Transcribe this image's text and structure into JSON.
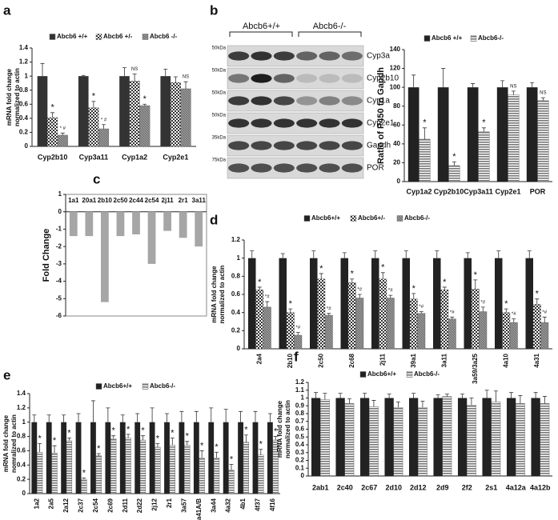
{
  "chart_data": [
    {
      "type": "bar",
      "panel": "a",
      "ylabel": [
        "mRNA fold change",
        "normalized to actin"
      ],
      "categories": [
        "Cyp2b10",
        "Cyp3a11",
        "Cyp1a2",
        "Cyp2e1"
      ],
      "ylim": [
        0,
        1.4
      ],
      "yticks": [
        0,
        0.2,
        0.4,
        0.6,
        0.8,
        1,
        1.2,
        1.4
      ],
      "series": [
        {
          "name": "Abcb6 +/+",
          "color": "#333333",
          "pattern": "solid",
          "values": [
            1,
            1,
            1,
            1
          ],
          "errors": [
            0.18,
            0.01,
            0.12,
            0.1
          ],
          "annotations": [
            null,
            null,
            null,
            null
          ]
        },
        {
          "name": "Abcb6 +/-",
          "color": "#333333",
          "pattern": "checker",
          "values": [
            0.41,
            0.55,
            0.93,
            0.91
          ],
          "errors": [
            0.07,
            0.09,
            0.1,
            0.08
          ],
          "annotations": [
            "*",
            "*",
            "NS",
            null
          ]
        },
        {
          "name": "Abcb6 -/-",
          "color": "#888888",
          "pattern": "hatch",
          "values": [
            0.16,
            0.25,
            0.58,
            0.82
          ],
          "errors": [
            0.03,
            0.06,
            0.02,
            0.1
          ],
          "annotations": [
            "* #",
            "* #",
            "*",
            "NS"
          ]
        }
      ]
    },
    {
      "type": "blot",
      "panel": "b",
      "group_labels": [
        "Abcb6+/+",
        "Abcb6-/-"
      ],
      "markers": [
        "50kDa",
        "50kDa",
        "50kDa",
        "50kDa",
        "35kDa",
        "75kDa"
      ],
      "bands": [
        "Cyp3a",
        "Cyp2b10",
        "Cyp1a",
        "Cyp2e1",
        "Gapdh",
        "POR"
      ]
    },
    {
      "type": "bar",
      "ylabel": "Ratio of P450 to Gapdh",
      "categories": [
        "Cyp1a2",
        "Cyp2b10",
        "Cyp3a11",
        "Cyp2e1",
        "POR"
      ],
      "ylim": [
        0,
        140
      ],
      "yticks": [
        0,
        20,
        40,
        60,
        80,
        100,
        120,
        140
      ],
      "series": [
        {
          "name": "Abcb6 +/+",
          "color": "#222222",
          "pattern": "solid",
          "values": [
            100,
            100,
            100,
            100,
            100
          ],
          "errors": [
            13,
            20,
            4,
            7,
            5
          ],
          "annotations": [
            null,
            null,
            null,
            null,
            null
          ]
        },
        {
          "name": "Abcb6-/-",
          "color": "#555555",
          "pattern": "hstripe",
          "values": [
            45,
            17,
            53,
            92,
            86
          ],
          "errors": [
            12,
            4,
            4,
            4,
            3
          ],
          "annotations": [
            "*",
            "*",
            "*",
            "NS",
            "NS"
          ]
        }
      ]
    },
    {
      "type": "bar",
      "panel": "c",
      "ylabel": "Fold Change",
      "categories": [
        "1a1",
        "20a1",
        "2b10",
        "2c50",
        "2c44",
        "2c54",
        "2j11",
        "2r1",
        "3a11"
      ],
      "ylim": [
        -6,
        1
      ],
      "yticks": [
        1,
        0,
        -1,
        -2,
        -3,
        -4,
        -5,
        -6
      ],
      "series": [
        {
          "name": null,
          "color": "#a6a6a6",
          "pattern": "solid",
          "values": [
            -1.4,
            -1.4,
            -5.2,
            -1.4,
            -1.3,
            -3.0,
            -1.1,
            -1.5,
            -2.0
          ]
        }
      ]
    },
    {
      "type": "bar",
      "panel": "d",
      "ylabel": [
        "mRNA fold change",
        "normalized to actin"
      ],
      "categories": [
        "2a4",
        "2b10",
        "2c50",
        "2c68",
        "2j11",
        "39a1",
        "3a11",
        "3a59/3a25",
        "4a10",
        "4a31"
      ],
      "ylim": [
        0,
        1.2
      ],
      "yticks": [
        0,
        0.2,
        0.4,
        0.6,
        0.8,
        1,
        1.2
      ],
      "series": [
        {
          "name": "Abcb6+/+",
          "color": "#222222",
          "pattern": "solid",
          "values": [
            1,
            1,
            1,
            1,
            1,
            1,
            1,
            1,
            1,
            1
          ],
          "errors": [
            0.08,
            0.05,
            0.08,
            0.06,
            0.08,
            0.08,
            0.08,
            0.06,
            0.08,
            0.08
          ],
          "annotations": [
            null,
            null,
            null,
            null,
            null,
            null,
            null,
            null,
            null,
            null
          ]
        },
        {
          "name": "Abcb6+/-",
          "color": "#333333",
          "pattern": "checker",
          "values": [
            0.65,
            0.4,
            0.77,
            0.73,
            0.77,
            0.55,
            0.65,
            0.66,
            0.4,
            0.49
          ],
          "errors": [
            0.03,
            0.04,
            0.06,
            0.04,
            0.07,
            0.06,
            0.03,
            0.1,
            0.04,
            0.06
          ],
          "annotations": [
            "*",
            "*",
            "*",
            "*",
            "*",
            "*",
            "*",
            "*",
            "*",
            "*"
          ]
        },
        {
          "name": "Abcb6-/-",
          "color": "#999999",
          "pattern": "hatch",
          "values": [
            0.46,
            0.15,
            0.37,
            0.56,
            0.56,
            0.39,
            0.33,
            0.41,
            0.29,
            0.29
          ],
          "errors": [
            0.06,
            0.03,
            0.02,
            0.04,
            0.03,
            0.02,
            0.02,
            0.05,
            0.04,
            0.06
          ],
          "annotations": [
            "*#",
            "*#",
            "*#",
            "*#",
            "*#",
            "*#",
            "*#",
            "*#",
            "*#",
            "*#"
          ]
        }
      ]
    },
    {
      "type": "bar",
      "panel": "e",
      "ylabel": [
        "mRNA fold change",
        "nomralized to actin"
      ],
      "categories": [
        "1a2",
        "2a5",
        "2a12",
        "2c37",
        "2c54",
        "2c69",
        "2d11",
        "2d22",
        "2j12",
        "2r1",
        "3a57",
        "3a41A/B",
        "3a44",
        "4a32",
        "4b1",
        "4f37",
        "4f16"
      ],
      "ylim": [
        0,
        1.4
      ],
      "yticks": [
        0,
        0.2,
        0.4,
        0.6,
        0.8,
        1,
        1.2,
        1.4
      ],
      "series": [
        {
          "name": "Abcb6+/+",
          "color": "#222222",
          "pattern": "solid",
          "values": [
            1,
            1,
            1,
            1,
            1,
            1,
            1,
            1,
            1,
            1,
            1,
            1,
            1,
            1,
            1,
            1,
            1
          ],
          "errors": [
            0.1,
            0.1,
            0.1,
            0.12,
            0.3,
            0.2,
            0.1,
            0.12,
            0.2,
            0.12,
            0.15,
            0.15,
            0.2,
            0.18,
            0.15,
            0.15,
            0.12
          ],
          "annotations": [
            null,
            null,
            null,
            null,
            null,
            null,
            null,
            null,
            null,
            null,
            null,
            null,
            null,
            null,
            null,
            null,
            null
          ]
        },
        {
          "name": "Abcb6-/-",
          "color": "#888888",
          "pattern": "hstripe",
          "values": [
            0.58,
            0.57,
            0.74,
            0.2,
            0.53,
            0.77,
            0.78,
            0.75,
            0.65,
            0.68,
            0.68,
            0.5,
            0.5,
            0.33,
            0.72,
            0.54,
            0.75
          ],
          "errors": [
            0.12,
            0.1,
            0.04,
            0.02,
            0.03,
            0.04,
            0.05,
            0.06,
            0.05,
            0.1,
            0.05,
            0.1,
            0.08,
            0.08,
            0.1,
            0.08,
            0.05
          ],
          "annotations": [
            "*",
            "*",
            "*",
            "*",
            "*",
            "*",
            "*",
            "*",
            "*",
            "*",
            "*",
            "*",
            "*",
            "*",
            "*",
            "*",
            "*"
          ]
        }
      ]
    },
    {
      "type": "bar",
      "panel": "f",
      "ylabel": [
        "mRNA fold change",
        "normalized to actin"
      ],
      "categories": [
        "2ab1",
        "2c40",
        "2c67",
        "2d10",
        "2d12",
        "2d9",
        "2f2",
        "2s1",
        "4a12a",
        "4a12b"
      ],
      "ylim": [
        0,
        1.2
      ],
      "yticks": [
        0,
        0.1,
        0.2,
        0.3,
        0.4,
        0.5,
        0.6,
        0.7,
        0.8,
        0.9,
        1,
        1.1,
        1.2
      ],
      "series": [
        {
          "name": "Abcb6+/+",
          "color": "#222222",
          "pattern": "solid",
          "values": [
            1,
            1,
            1,
            1,
            1,
            1,
            1,
            1,
            1,
            1
          ],
          "errors": [
            0.07,
            0.06,
            0.06,
            0.05,
            0.06,
            0.04,
            0.05,
            0.1,
            0.07,
            0.07
          ],
          "annotations": [
            null,
            null,
            null,
            null,
            null,
            null,
            null,
            null,
            null,
            null
          ]
        },
        {
          "name": "Abcb6-/-",
          "color": "#888888",
          "pattern": "hstripe",
          "values": [
            0.98,
            0.93,
            0.89,
            0.88,
            0.88,
            1.02,
            0.91,
            0.95,
            0.93,
            0.93
          ],
          "errors": [
            0.08,
            0.06,
            0.08,
            0.07,
            0.08,
            0.03,
            0.09,
            0.14,
            0.1,
            0.09
          ],
          "annotations": [
            null,
            null,
            null,
            null,
            null,
            null,
            null,
            null,
            null,
            null
          ]
        }
      ]
    }
  ]
}
